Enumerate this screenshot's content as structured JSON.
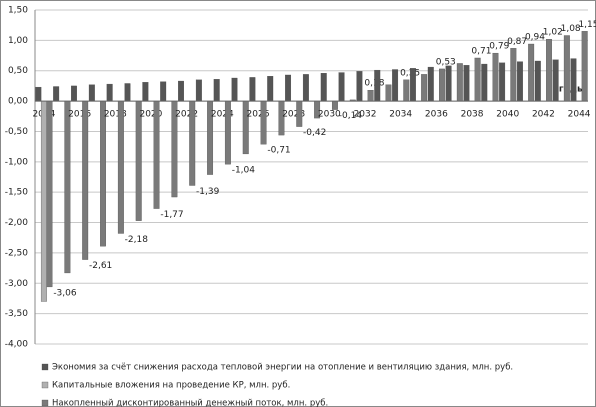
{
  "chart_data": {
    "type": "bar",
    "x_axis_label": "годы",
    "categories": [
      "2014",
      null,
      "2016",
      null,
      "2018",
      null,
      "2020",
      null,
      "2022",
      null,
      "2024",
      null,
      "2026",
      null,
      "2028",
      null,
      "2030",
      null,
      "2032",
      null,
      "2034",
      null,
      "2036",
      null,
      "2038",
      null,
      "2040",
      null,
      "2042",
      null,
      "2044"
    ],
    "series": [
      {
        "name": "Экономия за счёт снижения расхода тепловой энергии на отопление и вентиляцию здания, млн. руб.",
        "color": "#555555",
        "values": [
          0.23,
          0.24,
          0.25,
          0.27,
          0.28,
          0.29,
          0.31,
          0.32,
          0.33,
          0.35,
          0.36,
          0.38,
          0.39,
          0.41,
          0.43,
          0.44,
          0.46,
          0.47,
          0.49,
          0.51,
          0.52,
          0.54,
          0.56,
          0.58,
          0.59,
          0.61,
          0.63,
          0.65,
          0.66,
          0.68,
          0.7
        ]
      },
      {
        "name": "Капитальные вложения на проведение КР, млн. руб.",
        "color": "#b0b0b0",
        "values": [
          -3.3,
          null,
          null,
          null,
          null,
          null,
          null,
          null,
          null,
          null,
          null,
          null,
          null,
          null,
          null,
          null,
          null,
          null,
          null,
          null,
          null,
          null,
          null,
          null,
          null,
          null,
          null,
          null,
          null,
          null,
          null
        ]
      },
      {
        "name": "Накопленный дисконтированный денежный поток, млн. руб.",
        "color": "#7a7a7a",
        "values": [
          -3.06,
          -2.83,
          -2.61,
          -2.39,
          -2.18,
          -1.97,
          -1.77,
          -1.58,
          -1.39,
          -1.21,
          -1.04,
          -0.87,
          -0.71,
          -0.56,
          -0.42,
          -0.28,
          -0.14,
          0.02,
          0.18,
          0.27,
          0.35,
          0.44,
          0.53,
          0.62,
          0.71,
          0.79,
          0.87,
          0.94,
          1.02,
          1.08,
          1.15
        ],
        "value_labels": [
          "-3,06",
          null,
          "-2,61",
          null,
          "-2,18",
          null,
          "-1,77",
          null,
          "-1,39",
          null,
          "-1,04",
          null,
          "-0,71",
          null,
          "-0,42",
          null,
          "-0,14",
          null,
          "0,18",
          null,
          "0,35",
          null,
          "0,53",
          null,
          "0,71",
          "0,79",
          "0,87",
          "0,94",
          "1,02",
          "1,08",
          "1,15"
        ]
      }
    ],
    "ylim": [
      -4.0,
      1.5
    ],
    "yticks": [
      {
        "value": -4.0,
        "label": "-4,00"
      },
      {
        "value": -3.5,
        "label": "-3,50"
      },
      {
        "value": -3.0,
        "label": "-3,00"
      },
      {
        "value": -2.5,
        "label": "-2,50"
      },
      {
        "value": -2.0,
        "label": "-2,00"
      },
      {
        "value": -1.5,
        "label": "-1,50"
      },
      {
        "value": -1.0,
        "label": "-1,00"
      },
      {
        "value": -0.5,
        "label": "-0,50"
      },
      {
        "value": 0.0,
        "label": "0,00"
      },
      {
        "value": 0.5,
        "label": "0,50"
      },
      {
        "value": 1.0,
        "label": "1,00"
      },
      {
        "value": 1.5,
        "label": "1,50"
      }
    ],
    "grid": true
  }
}
